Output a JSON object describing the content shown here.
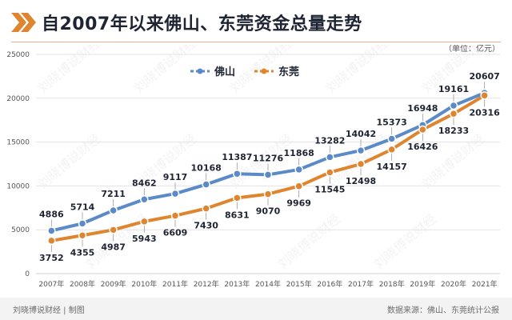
{
  "header": {
    "title": "自2007年以来佛山、东莞资金总量走势"
  },
  "footer": {
    "left": "刘晓博说财经 | 制图",
    "right": "数据来源：佛山、东莞统计公报"
  },
  "watermark": "刘晓博说财经",
  "colors": {
    "foshan": "#5b8ac9",
    "dongguan": "#e0852f",
    "grid": "#e3e3e3",
    "axis_text": "#555555",
    "label_text": "#333333",
    "accent": "#e0852f"
  },
  "chart_data": {
    "type": "line",
    "unit_label": "（单位：亿元）",
    "categories": [
      "2007年",
      "2008年",
      "2009年",
      "2010年",
      "2011年",
      "2012年",
      "2013年",
      "2014年",
      "2015年",
      "2016年",
      "2017年",
      "2018年",
      "2019年",
      "2020年",
      "2021年"
    ],
    "series": [
      {
        "name": "佛山",
        "values": [
          4886,
          5714,
          7211,
          8462,
          9117,
          10168,
          11387,
          11276,
          11868,
          13282,
          14042,
          15373,
          16948,
          19161,
          20607
        ]
      },
      {
        "name": "东莞",
        "values": [
          3752,
          4355,
          4987,
          5943,
          6609,
          7430,
          8631,
          9070,
          9969,
          11545,
          12498,
          14157,
          16426,
          18233,
          20316
        ]
      }
    ],
    "ylim": [
      0,
      25000
    ],
    "yticks": [
      0,
      5000,
      10000,
      15000,
      20000,
      25000
    ],
    "grid": true,
    "legend": "top-center"
  }
}
